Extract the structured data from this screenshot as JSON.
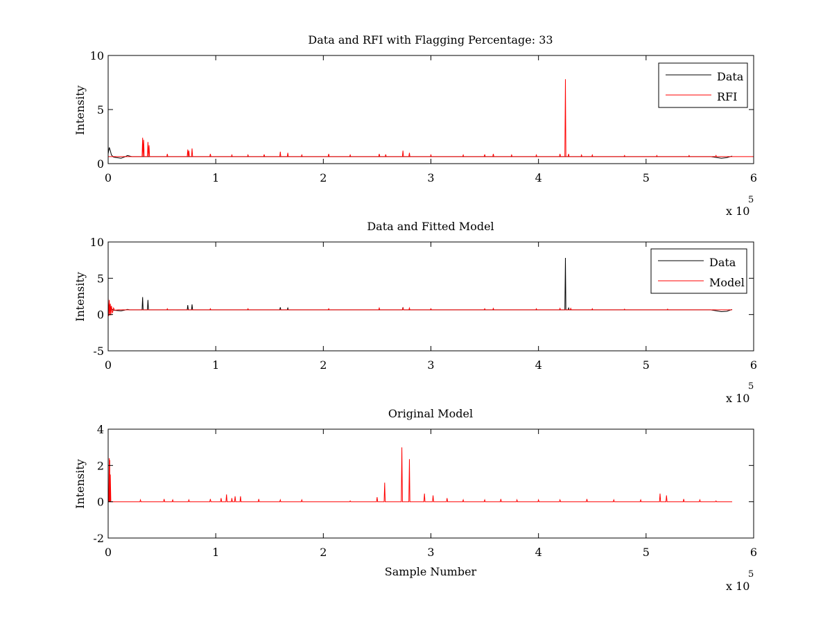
{
  "colors": {
    "data": "#000000",
    "rfi": "#ff0000",
    "model": "#ff0000",
    "axes": "#000000",
    "background": "#ffffff"
  },
  "chart_data": [
    {
      "type": "line",
      "title": "Data and RFI with Flagging Percentage: 33",
      "xlabel": "",
      "ylabel": "Intensity",
      "xlim": [
        0,
        600000
      ],
      "ylim": [
        0,
        10
      ],
      "xticks": [
        0,
        1,
        2,
        3,
        4,
        5,
        6
      ],
      "yticks": [
        0,
        5,
        10
      ],
      "x_multiplier_label": "x 10",
      "x_multiplier_exponent": "5",
      "grid": false,
      "legend_position": "top-right",
      "legend": [
        "Data",
        "RFI"
      ],
      "series": [
        {
          "name": "Data",
          "color": "#000000",
          "baseline": 0.65,
          "x": [
            0,
            1000,
            2000,
            3000,
            5000,
            8000,
            12000,
            15000,
            18000,
            20000,
            22000,
            30000,
            100000,
            200000,
            300000,
            400000,
            500000,
            560000,
            570000,
            575000,
            580000
          ],
          "y": [
            0.9,
            1.5,
            1.2,
            0.8,
            0.6,
            0.55,
            0.5,
            0.6,
            0.75,
            0.7,
            0.65,
            0.65,
            0.65,
            0.65,
            0.65,
            0.65,
            0.65,
            0.65,
            0.5,
            0.55,
            0.7
          ]
        },
        {
          "name": "RFI",
          "color": "#ff0000",
          "baseline": 0.65,
          "spikes": [
            [
              32000,
              2.4
            ],
            [
              33000,
              2.2
            ],
            [
              37000,
              2.0
            ],
            [
              38000,
              1.7
            ],
            [
              55000,
              0.9
            ],
            [
              74000,
              1.3
            ],
            [
              75000,
              1.2
            ],
            [
              78000,
              1.4
            ],
            [
              95000,
              0.9
            ],
            [
              115000,
              0.8
            ],
            [
              130000,
              0.8
            ],
            [
              145000,
              0.85
            ],
            [
              160000,
              1.1
            ],
            [
              167000,
              1.0
            ],
            [
              180000,
              0.8
            ],
            [
              205000,
              0.9
            ],
            [
              225000,
              0.8
            ],
            [
              252000,
              0.9
            ],
            [
              258000,
              0.85
            ],
            [
              274000,
              1.2
            ],
            [
              280000,
              1.0
            ],
            [
              300000,
              0.8
            ],
            [
              330000,
              0.8
            ],
            [
              350000,
              0.85
            ],
            [
              358000,
              0.9
            ],
            [
              375000,
              0.8
            ],
            [
              398000,
              0.8
            ],
            [
              420000,
              0.9
            ],
            [
              425000,
              7.8
            ],
            [
              428000,
              0.9
            ],
            [
              440000,
              0.8
            ],
            [
              450000,
              0.8
            ],
            [
              480000,
              0.75
            ],
            [
              510000,
              0.75
            ],
            [
              540000,
              0.75
            ],
            [
              565000,
              0.75
            ]
          ]
        }
      ]
    },
    {
      "type": "line",
      "title": "Data and Fitted Model",
      "xlabel": "",
      "ylabel": "Intensity",
      "xlim": [
        0,
        600000
      ],
      "ylim": [
        -5,
        10
      ],
      "xticks": [
        0,
        1,
        2,
        3,
        4,
        5,
        6
      ],
      "yticks": [
        -5,
        0,
        5,
        10
      ],
      "x_multiplier_label": "x 10",
      "x_multiplier_exponent": "5",
      "grid": false,
      "legend_position": "top-right",
      "legend": [
        "Data",
        "Model"
      ],
      "series": [
        {
          "name": "Data",
          "color": "#000000",
          "baseline": 0.65,
          "x": [
            0,
            1000,
            2000,
            3000,
            5000,
            8000,
            12000,
            15000,
            18000,
            20000,
            30000,
            560000,
            570000,
            575000,
            580000
          ],
          "y": [
            0.9,
            1.3,
            1.1,
            0.8,
            0.6,
            0.55,
            0.5,
            0.6,
            0.7,
            0.65,
            0.65,
            0.65,
            0.4,
            0.45,
            0.7
          ],
          "spikes": [
            [
              32000,
              2.4
            ],
            [
              37000,
              2.0
            ],
            [
              74000,
              1.3
            ],
            [
              78000,
              1.4
            ],
            [
              160000,
              1.0
            ],
            [
              167000,
              0.9
            ],
            [
              274000,
              1.0
            ],
            [
              425000,
              7.8
            ],
            [
              428000,
              0.9
            ]
          ]
        },
        {
          "name": "Model",
          "color": "#ff0000",
          "baseline": 0.65,
          "x": [
            0,
            500,
            1000,
            1500,
            2000,
            2500,
            3000,
            4000,
            5000,
            6000,
            10000,
            580000
          ],
          "y": [
            2.3,
            -0.2,
            2.0,
            -0.1,
            1.5,
            -0.1,
            1.2,
            0.2,
            0.9,
            0.6,
            0.65,
            0.65
          ],
          "spikes": [
            [
              55000,
              0.8
            ],
            [
              95000,
              0.8
            ],
            [
              130000,
              0.8
            ],
            [
              205000,
              0.8
            ],
            [
              252000,
              0.9
            ],
            [
              274000,
              0.9
            ],
            [
              280000,
              0.9
            ],
            [
              300000,
              0.8
            ],
            [
              350000,
              0.8
            ],
            [
              358000,
              0.85
            ],
            [
              398000,
              0.8
            ],
            [
              420000,
              0.85
            ],
            [
              430000,
              0.85
            ],
            [
              450000,
              0.8
            ],
            [
              480000,
              0.75
            ],
            [
              520000,
              0.75
            ]
          ]
        }
      ]
    },
    {
      "type": "line",
      "title": "Original Model",
      "xlabel": "Sample Number",
      "ylabel": "Intensity",
      "xlim": [
        0,
        600000
      ],
      "ylim": [
        -2,
        4
      ],
      "xticks": [
        0,
        1,
        2,
        3,
        4,
        5,
        6
      ],
      "yticks": [
        -2,
        0,
        2,
        4
      ],
      "x_multiplier_label": "x 10",
      "x_multiplier_exponent": "5",
      "grid": false,
      "legend_position": "none",
      "legend": [],
      "series": [
        {
          "name": "",
          "color": "#ff0000",
          "baseline": 0,
          "x_end": 580000,
          "spikes": [
            [
              1000,
              2.4
            ],
            [
              1500,
              2.3
            ],
            [
              2000,
              1.5
            ],
            [
              30000,
              0.1
            ],
            [
              52000,
              0.15
            ],
            [
              60000,
              0.1
            ],
            [
              75000,
              0.1
            ],
            [
              95000,
              0.15
            ],
            [
              105000,
              0.2
            ],
            [
              110000,
              0.4
            ],
            [
              115000,
              0.2
            ],
            [
              118000,
              0.3
            ],
            [
              123000,
              0.3
            ],
            [
              140000,
              0.15
            ],
            [
              160000,
              0.1
            ],
            [
              180000,
              0.1
            ],
            [
              225000,
              0.05
            ],
            [
              250000,
              0.25
            ],
            [
              257000,
              1.05
            ],
            [
              273000,
              3.0
            ],
            [
              280000,
              2.35
            ],
            [
              294000,
              0.45
            ],
            [
              302000,
              0.35
            ],
            [
              315000,
              0.2
            ],
            [
              330000,
              0.1
            ],
            [
              350000,
              0.1
            ],
            [
              365000,
              0.15
            ],
            [
              380000,
              0.1
            ],
            [
              400000,
              0.1
            ],
            [
              420000,
              0.1
            ],
            [
              445000,
              0.15
            ],
            [
              470000,
              0.1
            ],
            [
              495000,
              0.1
            ],
            [
              513000,
              0.45
            ],
            [
              519000,
              0.35
            ],
            [
              535000,
              0.15
            ],
            [
              550000,
              0.1
            ],
            [
              565000,
              0.05
            ]
          ]
        }
      ]
    }
  ]
}
